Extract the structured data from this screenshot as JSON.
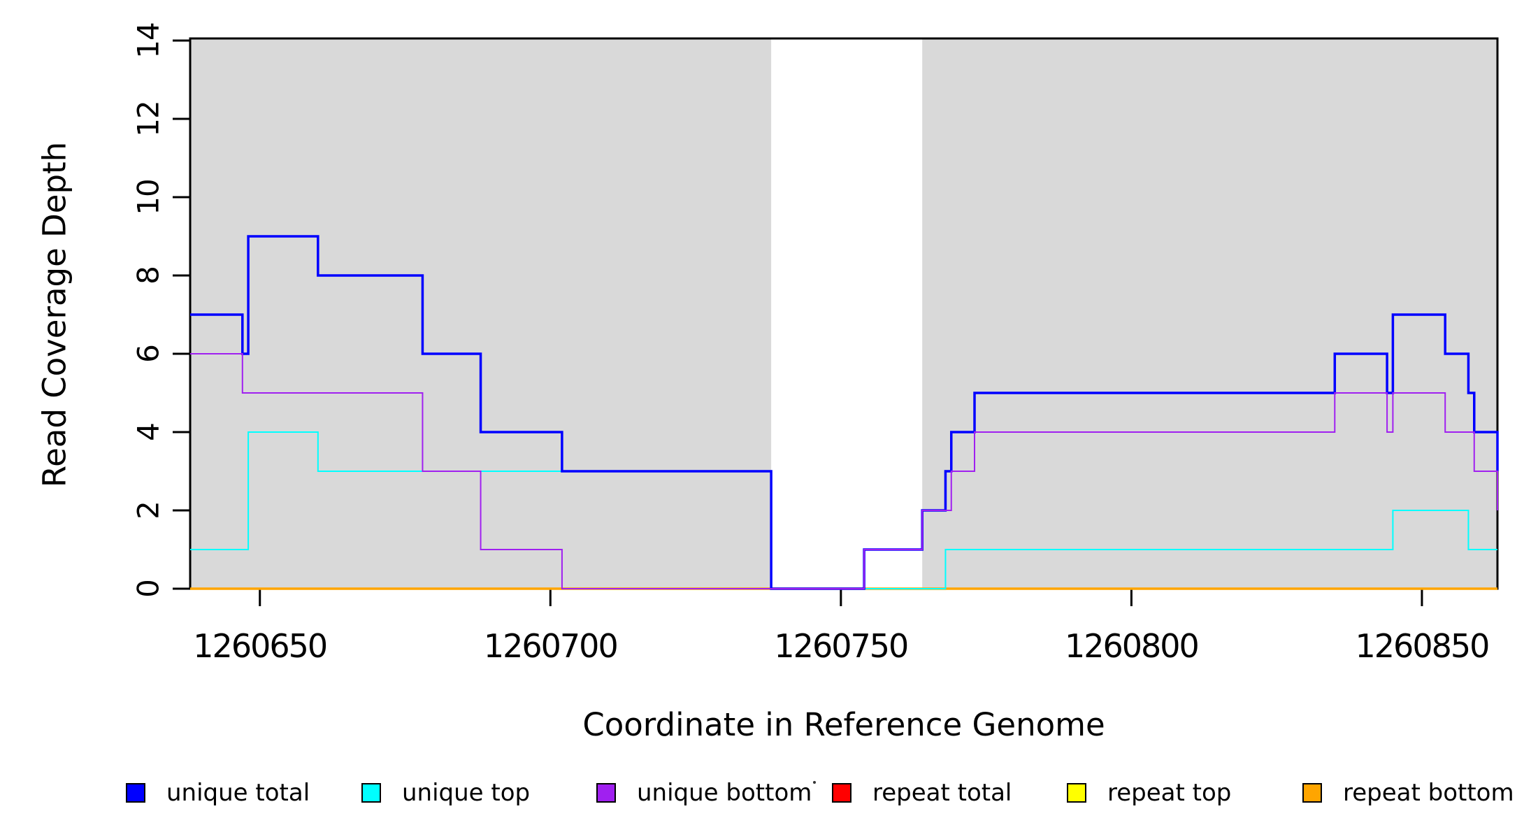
{
  "figure": {
    "x_axis_title": "Coordinate in Reference Genome",
    "y_axis_title": "Read Coverage Depth"
  },
  "legend": {
    "items": [
      {
        "label": "unique total",
        "color": "#0000FF"
      },
      {
        "label": "unique top",
        "color": "#00FFFF"
      },
      {
        "label": "unique bottom",
        "color": "#A020F0"
      },
      {
        "label": "repeat total",
        "color": "#FF0000"
      },
      {
        "label": "repeat top",
        "color": "#FFFF00"
      },
      {
        "label": "repeat bottom",
        "color": "#FFA500"
      }
    ]
  },
  "chart_data": {
    "type": "line",
    "subtype": "step",
    "title": "",
    "xlabel": "Coordinate in Reference Genome",
    "ylabel": "Read Coverage Depth",
    "xlim": [
      1260638,
      1260863
    ],
    "ylim": [
      0,
      14
    ],
    "x_ticks": [
      1260650,
      1260700,
      1260750,
      1260800,
      1260850
    ],
    "y_ticks": [
      0,
      2,
      4,
      6,
      8,
      10,
      12,
      14
    ],
    "grid": false,
    "legend_position": "bottom",
    "background_color": "#FFFFFF",
    "shaded_regions": [
      {
        "name": "gray-block-left",
        "x0": 1260638,
        "x1": 1260738,
        "color": "#D9D9D9"
      },
      {
        "name": "gray-block-right",
        "x0": 1260764,
        "x1": 1260863,
        "color": "#D9D9D9"
      }
    ],
    "series": [
      {
        "name": "repeat total",
        "color": "#FF0000",
        "width": 2,
        "points": [
          [
            1260638,
            0
          ],
          [
            1260863,
            0
          ]
        ]
      },
      {
        "name": "repeat top",
        "color": "#FFFF00",
        "width": 2,
        "points": [
          [
            1260638,
            0
          ],
          [
            1260863,
            0
          ]
        ]
      },
      {
        "name": "repeat bottom",
        "color": "#FFA500",
        "width": 3.5,
        "points": [
          [
            1260638,
            0
          ],
          [
            1260863,
            0
          ]
        ]
      },
      {
        "name": "unique top",
        "color": "#00FFFF",
        "width": 2,
        "points": [
          [
            1260638,
            1
          ],
          [
            1260648,
            4
          ],
          [
            1260660,
            3
          ],
          [
            1260738,
            0
          ],
          [
            1260768,
            1
          ],
          [
            1260845,
            2
          ],
          [
            1260858,
            1
          ],
          [
            1260863,
            1
          ]
        ]
      },
      {
        "name": "unique total",
        "color": "#0000FF",
        "width": 3.5,
        "points": [
          [
            1260638,
            7
          ],
          [
            1260647,
            6
          ],
          [
            1260648,
            9
          ],
          [
            1260660,
            8
          ],
          [
            1260678,
            6
          ],
          [
            1260688,
            4
          ],
          [
            1260702,
            3
          ],
          [
            1260738,
            0
          ],
          [
            1260754,
            1
          ],
          [
            1260764,
            2
          ],
          [
            1260768,
            3
          ],
          [
            1260769,
            4
          ],
          [
            1260773,
            5
          ],
          [
            1260835,
            6
          ],
          [
            1260844,
            5
          ],
          [
            1260845,
            7
          ],
          [
            1260854,
            6
          ],
          [
            1260858,
            5
          ],
          [
            1260859,
            4
          ],
          [
            1260863,
            3
          ]
        ]
      },
      {
        "name": "unique bottom",
        "color": "#A020F0",
        "width": 2,
        "points": [
          [
            1260638,
            6
          ],
          [
            1260647,
            5
          ],
          [
            1260678,
            3
          ],
          [
            1260688,
            1
          ],
          [
            1260702,
            0
          ],
          [
            1260754,
            1
          ],
          [
            1260764,
            2
          ],
          [
            1260769,
            3
          ],
          [
            1260773,
            4
          ],
          [
            1260835,
            5
          ],
          [
            1260844,
            4
          ],
          [
            1260845,
            5
          ],
          [
            1260854,
            4
          ],
          [
            1260859,
            3
          ],
          [
            1260863,
            2
          ]
        ]
      }
    ]
  }
}
